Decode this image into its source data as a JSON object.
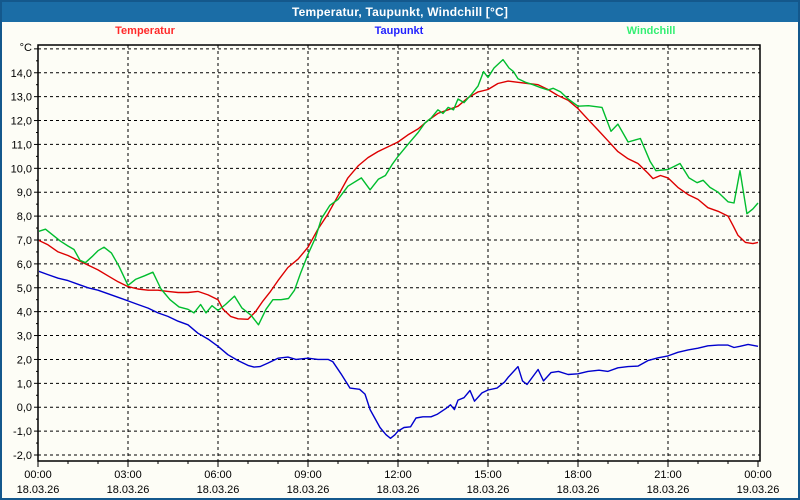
{
  "window": {
    "title": "Temperatur, Taupunkt, Windchill [°C]"
  },
  "legend": [
    {
      "label": "Temperatur",
      "color": "#ff2a2a"
    },
    {
      "label": "Taupunkt",
      "color": "#2222ff"
    },
    {
      "label": "Windchill",
      "color": "#35ef74"
    }
  ],
  "chart_data": {
    "type": "line",
    "title": "Temperatur, Taupunkt, Windchill [°C]",
    "y_unit_label": "°C",
    "xlabel": "",
    "ylabel": "",
    "xlim_hours": [
      0,
      24
    ],
    "ylim": [
      -2.25,
      15.15
    ],
    "grid": {
      "on": true,
      "h_values": [
        15,
        14,
        13,
        12,
        11,
        10,
        9,
        8,
        7,
        6,
        5,
        4,
        3,
        2,
        1,
        0,
        -1,
        -2
      ],
      "v_hours": [
        3,
        6,
        9,
        12,
        15,
        18,
        21
      ]
    },
    "y_ticks": [
      {
        "value": 14,
        "label": "14,0"
      },
      {
        "value": 13,
        "label": "13,0"
      },
      {
        "value": 12,
        "label": "12,0"
      },
      {
        "value": 11,
        "label": "11,0"
      },
      {
        "value": 10,
        "label": "10,0"
      },
      {
        "value": 9,
        "label": "9,0"
      },
      {
        "value": 8,
        "label": "8,0"
      },
      {
        "value": 7,
        "label": "7,0"
      },
      {
        "value": 6,
        "label": "6,0"
      },
      {
        "value": 5,
        "label": "5,0"
      },
      {
        "value": 4,
        "label": "4,0"
      },
      {
        "value": 3,
        "label": "3,0"
      },
      {
        "value": 2,
        "label": "2,0"
      },
      {
        "value": 1,
        "label": "1,0"
      },
      {
        "value": 0,
        "label": "0,0"
      },
      {
        "value": -1,
        "label": "-1,0"
      },
      {
        "value": -2,
        "label": "-2,0"
      }
    ],
    "x_ticks": [
      {
        "hour": 0,
        "time": "00:00",
        "date": "18.03.26"
      },
      {
        "hour": 3,
        "time": "03:00",
        "date": "18.03.26"
      },
      {
        "hour": 6,
        "time": "06:00",
        "date": "18.03.26"
      },
      {
        "hour": 9,
        "time": "09:00",
        "date": "18.03.26"
      },
      {
        "hour": 12,
        "time": "12:00",
        "date": "18.03.26"
      },
      {
        "hour": 15,
        "time": "15:00",
        "date": "18.03.26"
      },
      {
        "hour": 18,
        "time": "18:00",
        "date": "18.03.26"
      },
      {
        "hour": 21,
        "time": "21:00",
        "date": "18.03.26"
      },
      {
        "hour": 24,
        "time": "00:00",
        "date": "19.03.26"
      }
    ],
    "series": [
      {
        "name": "Temperatur",
        "color": "#dd0000",
        "points": [
          [
            0,
            7.0
          ],
          [
            0.33,
            6.8
          ],
          [
            0.67,
            6.5
          ],
          [
            1,
            6.35
          ],
          [
            1.33,
            6.15
          ],
          [
            1.67,
            5.95
          ],
          [
            2,
            5.75
          ],
          [
            2.33,
            5.5
          ],
          [
            2.67,
            5.25
          ],
          [
            3,
            5.05
          ],
          [
            3.33,
            4.95
          ],
          [
            3.67,
            4.9
          ],
          [
            4,
            4.9
          ],
          [
            4.33,
            4.85
          ],
          [
            4.67,
            4.8
          ],
          [
            5,
            4.8
          ],
          [
            5.33,
            4.85
          ],
          [
            5.67,
            4.7
          ],
          [
            6,
            4.5
          ],
          [
            6.17,
            4.1
          ],
          [
            6.42,
            3.8
          ],
          [
            6.67,
            3.7
          ],
          [
            7,
            3.68
          ],
          [
            7.25,
            4.0
          ],
          [
            7.5,
            4.45
          ],
          [
            7.75,
            4.85
          ],
          [
            8,
            5.3
          ],
          [
            8.33,
            5.85
          ],
          [
            8.67,
            6.2
          ],
          [
            9,
            6.7
          ],
          [
            9.33,
            7.45
          ],
          [
            9.67,
            8.1
          ],
          [
            10,
            8.85
          ],
          [
            10.33,
            9.6
          ],
          [
            10.67,
            10.1
          ],
          [
            11,
            10.45
          ],
          [
            11.33,
            10.7
          ],
          [
            11.67,
            10.9
          ],
          [
            12,
            11.1
          ],
          [
            12.33,
            11.4
          ],
          [
            12.67,
            11.65
          ],
          [
            13,
            12.0
          ],
          [
            13.33,
            12.3
          ],
          [
            13.67,
            12.45
          ],
          [
            14,
            12.6
          ],
          [
            14.33,
            12.95
          ],
          [
            14.67,
            13.2
          ],
          [
            15,
            13.3
          ],
          [
            15.33,
            13.55
          ],
          [
            15.67,
            13.65
          ],
          [
            16,
            13.6
          ],
          [
            16.33,
            13.55
          ],
          [
            16.67,
            13.5
          ],
          [
            17,
            13.3
          ],
          [
            17.33,
            13.05
          ],
          [
            17.67,
            12.85
          ],
          [
            18,
            12.5
          ],
          [
            18.33,
            12.05
          ],
          [
            18.67,
            11.6
          ],
          [
            19,
            11.15
          ],
          [
            19.33,
            10.7
          ],
          [
            19.67,
            10.4
          ],
          [
            20,
            10.2
          ],
          [
            20.33,
            9.8
          ],
          [
            20.5,
            9.57
          ],
          [
            20.75,
            9.7
          ],
          [
            21,
            9.6
          ],
          [
            21.33,
            9.2
          ],
          [
            21.67,
            8.9
          ],
          [
            22,
            8.7
          ],
          [
            22.33,
            8.35
          ],
          [
            22.67,
            8.2
          ],
          [
            23,
            8.0
          ],
          [
            23.17,
            7.6
          ],
          [
            23.33,
            7.2
          ],
          [
            23.58,
            6.9
          ],
          [
            23.83,
            6.85
          ],
          [
            24,
            6.9
          ]
        ]
      },
      {
        "name": "Taupunkt",
        "color": "#0000cd",
        "points": [
          [
            0,
            5.7
          ],
          [
            0.33,
            5.55
          ],
          [
            0.67,
            5.4
          ],
          [
            1,
            5.3
          ],
          [
            1.33,
            5.15
          ],
          [
            1.67,
            5.0
          ],
          [
            2,
            4.9
          ],
          [
            2.33,
            4.75
          ],
          [
            2.67,
            4.6
          ],
          [
            3,
            4.45
          ],
          [
            3.33,
            4.3
          ],
          [
            3.67,
            4.15
          ],
          [
            4,
            3.95
          ],
          [
            4.33,
            3.8
          ],
          [
            4.67,
            3.6
          ],
          [
            5,
            3.45
          ],
          [
            5.33,
            3.1
          ],
          [
            5.67,
            2.85
          ],
          [
            6,
            2.55
          ],
          [
            6.33,
            2.2
          ],
          [
            6.67,
            1.95
          ],
          [
            7,
            1.75
          ],
          [
            7.2,
            1.68
          ],
          [
            7.4,
            1.7
          ],
          [
            7.67,
            1.85
          ],
          [
            8,
            2.05
          ],
          [
            8.33,
            2.1
          ],
          [
            8.6,
            2.0
          ],
          [
            9,
            2.05
          ],
          [
            9.33,
            2.0
          ],
          [
            9.67,
            2.0
          ],
          [
            9.83,
            1.9
          ],
          [
            10.1,
            1.4
          ],
          [
            10.4,
            0.8
          ],
          [
            10.72,
            0.75
          ],
          [
            10.9,
            0.55
          ],
          [
            11.07,
            -0.1
          ],
          [
            11.4,
            -0.85
          ],
          [
            11.6,
            -1.15
          ],
          [
            11.75,
            -1.3
          ],
          [
            11.9,
            -1.15
          ],
          [
            12,
            -1.0
          ],
          [
            12.2,
            -0.85
          ],
          [
            12.42,
            -0.82
          ],
          [
            12.6,
            -0.45
          ],
          [
            12.83,
            -0.4
          ],
          [
            13.1,
            -0.4
          ],
          [
            13.3,
            -0.3
          ],
          [
            13.6,
            -0.05
          ],
          [
            13.75,
            0.1
          ],
          [
            13.88,
            -0.1
          ],
          [
            14,
            0.3
          ],
          [
            14.2,
            0.4
          ],
          [
            14.4,
            0.7
          ],
          [
            14.55,
            0.25
          ],
          [
            14.8,
            0.6
          ],
          [
            15,
            0.72
          ],
          [
            15.3,
            0.8
          ],
          [
            15.55,
            1.05
          ],
          [
            15.67,
            1.25
          ],
          [
            16,
            1.7
          ],
          [
            16.15,
            1.1
          ],
          [
            16.3,
            0.95
          ],
          [
            16.67,
            1.58
          ],
          [
            16.85,
            1.1
          ],
          [
            17.1,
            1.45
          ],
          [
            17.35,
            1.5
          ],
          [
            17.67,
            1.37
          ],
          [
            18,
            1.4
          ],
          [
            18.33,
            1.5
          ],
          [
            18.7,
            1.55
          ],
          [
            19,
            1.5
          ],
          [
            19.33,
            1.65
          ],
          [
            19.67,
            1.7
          ],
          [
            20,
            1.72
          ],
          [
            20.33,
            1.95
          ],
          [
            20.67,
            2.07
          ],
          [
            21,
            2.15
          ],
          [
            21.33,
            2.3
          ],
          [
            21.67,
            2.4
          ],
          [
            22,
            2.47
          ],
          [
            22.33,
            2.57
          ],
          [
            22.67,
            2.6
          ],
          [
            23,
            2.6
          ],
          [
            23.2,
            2.5
          ],
          [
            23.4,
            2.55
          ],
          [
            23.67,
            2.63
          ],
          [
            24,
            2.55
          ]
        ]
      },
      {
        "name": "Windchill",
        "color": "#00bd2e",
        "points": [
          [
            0,
            7.35
          ],
          [
            0.25,
            7.45
          ],
          [
            0.5,
            7.2
          ],
          [
            0.75,
            6.95
          ],
          [
            1,
            6.75
          ],
          [
            1.2,
            6.6
          ],
          [
            1.4,
            6.15
          ],
          [
            1.58,
            6.05
          ],
          [
            1.8,
            6.3
          ],
          [
            2,
            6.55
          ],
          [
            2.2,
            6.7
          ],
          [
            2.45,
            6.45
          ],
          [
            2.7,
            5.9
          ],
          [
            3,
            5.1
          ],
          [
            3.25,
            5.35
          ],
          [
            3.55,
            5.5
          ],
          [
            3.83,
            5.65
          ],
          [
            4.1,
            4.95
          ],
          [
            4.4,
            4.5
          ],
          [
            4.7,
            4.2
          ],
          [
            5,
            4.1
          ],
          [
            5.2,
            3.95
          ],
          [
            5.42,
            4.3
          ],
          [
            5.6,
            3.95
          ],
          [
            5.8,
            4.25
          ],
          [
            6,
            4.05
          ],
          [
            6.25,
            4.3
          ],
          [
            6.55,
            4.65
          ],
          [
            6.8,
            4.15
          ],
          [
            7.1,
            3.85
          ],
          [
            7.35,
            3.45
          ],
          [
            7.6,
            4.1
          ],
          [
            7.83,
            4.5
          ],
          [
            8.1,
            4.5
          ],
          [
            8.35,
            4.55
          ],
          [
            8.55,
            4.9
          ],
          [
            8.75,
            5.6
          ],
          [
            9,
            6.4
          ],
          [
            9.25,
            7.1
          ],
          [
            9.45,
            7.9
          ],
          [
            9.73,
            8.45
          ],
          [
            10,
            8.7
          ],
          [
            10.33,
            9.25
          ],
          [
            10.78,
            9.6
          ],
          [
            11.07,
            9.1
          ],
          [
            11.35,
            9.55
          ],
          [
            11.58,
            9.7
          ],
          [
            11.8,
            10.15
          ],
          [
            12,
            10.5
          ],
          [
            12.33,
            11.0
          ],
          [
            12.67,
            11.5
          ],
          [
            12.9,
            11.9
          ],
          [
            13.1,
            12.1
          ],
          [
            13.33,
            12.45
          ],
          [
            13.5,
            12.3
          ],
          [
            13.67,
            12.55
          ],
          [
            13.85,
            12.45
          ],
          [
            14,
            12.9
          ],
          [
            14.2,
            12.75
          ],
          [
            14.45,
            13.1
          ],
          [
            14.67,
            13.45
          ],
          [
            14.85,
            14.05
          ],
          [
            15,
            13.8
          ],
          [
            15.2,
            14.2
          ],
          [
            15.5,
            14.55
          ],
          [
            15.7,
            14.2
          ],
          [
            15.85,
            14.05
          ],
          [
            16,
            13.75
          ],
          [
            16.25,
            13.6
          ],
          [
            16.5,
            13.5
          ],
          [
            16.75,
            13.38
          ],
          [
            17,
            13.28
          ],
          [
            17.17,
            13.35
          ],
          [
            17.42,
            13.2
          ],
          [
            17.67,
            12.9
          ],
          [
            18,
            12.6
          ],
          [
            18.35,
            12.62
          ],
          [
            18.8,
            12.55
          ],
          [
            19.1,
            11.55
          ],
          [
            19.33,
            11.85
          ],
          [
            19.67,
            11.1
          ],
          [
            20.08,
            11.25
          ],
          [
            20.4,
            10.3
          ],
          [
            20.6,
            9.9
          ],
          [
            21,
            9.95
          ],
          [
            21.4,
            10.2
          ],
          [
            21.7,
            9.6
          ],
          [
            21.97,
            9.4
          ],
          [
            22.17,
            9.5
          ],
          [
            22.4,
            9.2
          ],
          [
            22.67,
            9.0
          ],
          [
            23,
            8.6
          ],
          [
            23.2,
            8.55
          ],
          [
            23.4,
            9.9
          ],
          [
            23.63,
            8.1
          ],
          [
            23.83,
            8.3
          ],
          [
            24,
            8.55
          ]
        ]
      }
    ],
    "legend_position": "top"
  }
}
